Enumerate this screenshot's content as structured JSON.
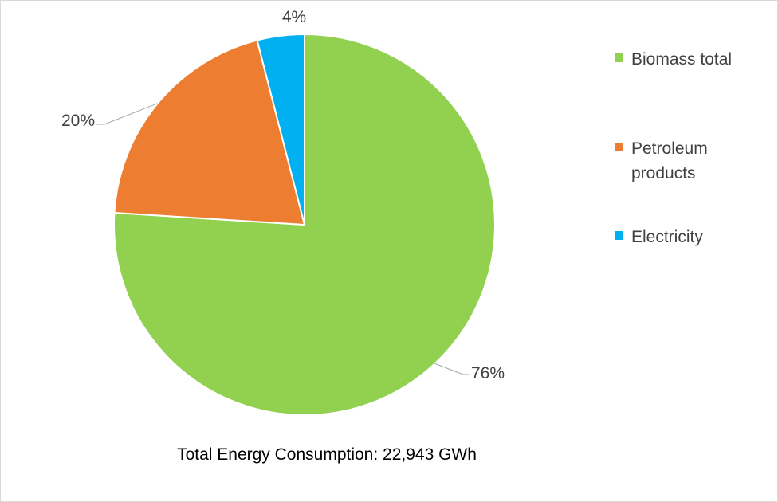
{
  "chart_data": {
    "type": "pie",
    "categories": [
      "Biomass total",
      "Petroleum products",
      "Electricity"
    ],
    "values": [
      76,
      20,
      4
    ],
    "data_labels": [
      "76%",
      "20%",
      "4%"
    ],
    "colors": [
      "#92d050",
      "#ed7d31",
      "#00b0f0"
    ],
    "legend_position": "right",
    "caption": "Total Energy Consumption: 22,943 GWh"
  }
}
